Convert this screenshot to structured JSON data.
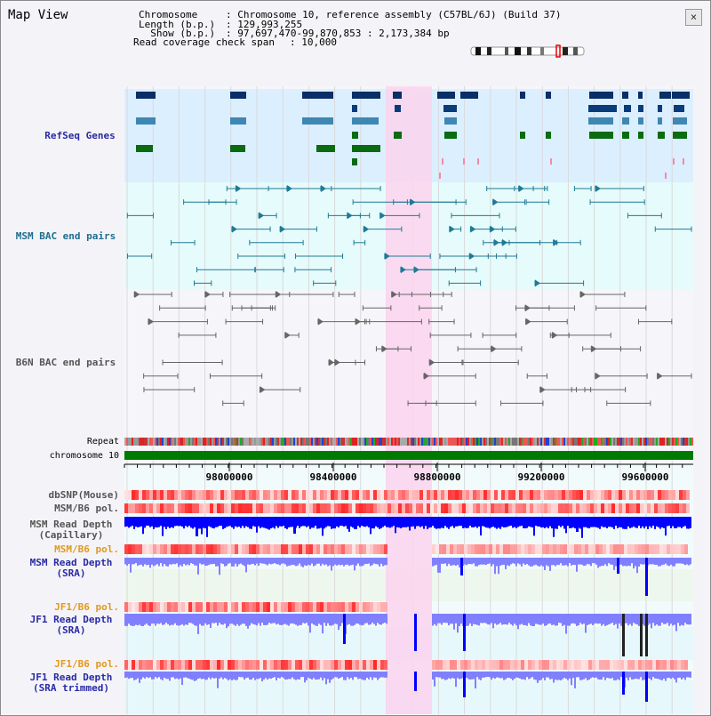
{
  "window": {
    "title": "Map View",
    "close_glyph": "×"
  },
  "header": {
    "chromosome_key": "Chromosome",
    "chromosome_value": ": Chromosome 10, reference assembly (C57BL/6J) (Build 37)",
    "length_key": "Length (b.p.)",
    "length_value": ": 129,993,255",
    "show_key": "  Show (b.p.)",
    "show_value": ": 97,697,470-99,870,853 : 2,173,384 bp",
    "coverage_key": "Read coverage check span",
    "coverage_value": ": 10,000"
  },
  "tracks": {
    "refseq": "RefSeq Genes",
    "msm_bac": "MSM BAC end pairs",
    "b6n_bac": "B6N BAC end pairs",
    "repeat": "Repeat",
    "chromosome": "chromosome 10",
    "dbsnp": "dbSNP(Mouse)",
    "msm_b6_pol_a": "MSM/B6 pol.",
    "msm_read_depth_cap_1": "MSM Read Depth",
    "msm_read_depth_cap_2": "(Capillary)",
    "msm_b6_pol_b": "MSM/B6 pol.",
    "msm_read_depth_sra_1": "MSM Read Depth",
    "msm_read_depth_sra_2": "(SRA)",
    "jf1_b6_pol_a": "JF1/B6 pol.",
    "jf1_read_depth_sra_1": "JF1 Read Depth",
    "jf1_read_depth_sra_2": "(SRA)",
    "jf1_b6_pol_b": "JF1/B6 pol.",
    "jf1_read_depth_trim_1": "JF1 Read Depth",
    "jf1_read_depth_trim_2": "(SRA trimmed)"
  },
  "axis": {
    "ticks": [
      "98000000",
      "98400000",
      "98800000",
      "99200000",
      "99600000"
    ]
  },
  "colors": {
    "refseq_bg": "#dcefff",
    "msm_bac_bg": "#e6fbfb",
    "highlight": "#fbd3ef",
    "gene_dark": "#0a2e66",
    "gene_mid": "#3f87b3",
    "gene_green": "#0a6b10",
    "msm_bac": "#207a96",
    "b6n_bac": "#666666",
    "chromosome_bar": "#007a00",
    "depth_blue": "#0000ff",
    "depth_light": "#8080ff"
  }
}
